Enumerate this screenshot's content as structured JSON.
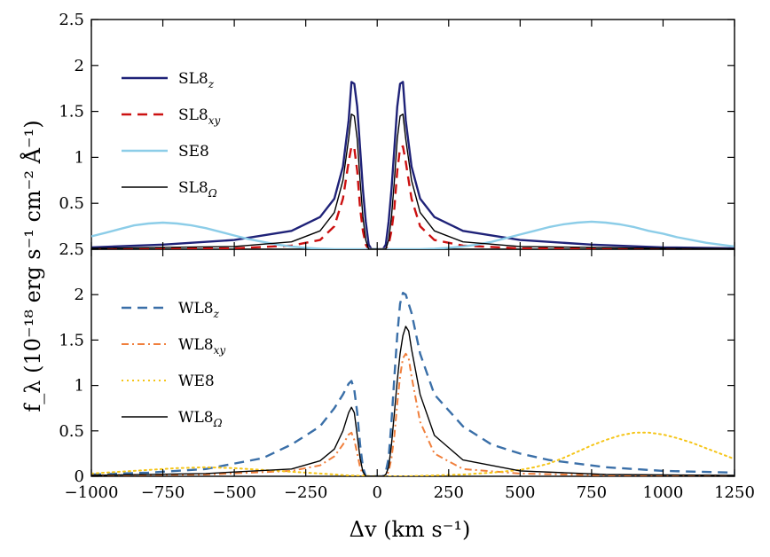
{
  "chart_data": [
    {
      "type": "line",
      "panel": "top",
      "xlim": [
        -1000,
        1250
      ],
      "ylim": [
        0,
        2.5
      ],
      "x_ticks": [
        -1000,
        -750,
        -500,
        -250,
        0,
        250,
        500,
        750,
        1000,
        1250
      ],
      "y_ticks": [
        0.5,
        1,
        1.5,
        2,
        2.5
      ],
      "y_tick_labels": [
        "0.5",
        "1",
        "1.5",
        "2",
        "2.5"
      ],
      "series": [
        {
          "name": "SL8",
          "subscript": "z",
          "color": "#1f2278",
          "style": "solid",
          "x": [
            -1000,
            -750,
            -500,
            -300,
            -200,
            -150,
            -120,
            -100,
            -90,
            -80,
            -70,
            -60,
            -50,
            -40,
            -30,
            -20,
            -10,
            0,
            10,
            20,
            30,
            40,
            50,
            60,
            70,
            80,
            90,
            100,
            120,
            150,
            200,
            300,
            500,
            750,
            1000,
            1250
          ],
          "y": [
            0.02,
            0.05,
            0.1,
            0.2,
            0.35,
            0.55,
            0.9,
            1.4,
            1.82,
            1.8,
            1.55,
            1.1,
            0.65,
            0.3,
            0.05,
            0,
            0,
            0,
            0,
            0,
            0.05,
            0.3,
            0.65,
            1.1,
            1.55,
            1.8,
            1.82,
            1.4,
            0.9,
            0.55,
            0.35,
            0.2,
            0.1,
            0.05,
            0.02,
            0.01
          ]
        },
        {
          "name": "SL8",
          "subscript": "xy",
          "color": "#cc1111",
          "style": "dashed",
          "x": [
            -1000,
            -500,
            -300,
            -200,
            -150,
            -120,
            -100,
            -90,
            -80,
            -70,
            -60,
            -50,
            -40,
            -30,
            -20,
            0,
            20,
            30,
            40,
            50,
            60,
            70,
            80,
            90,
            100,
            120,
            150,
            200,
            300,
            500,
            1000,
            1250
          ],
          "y": [
            0,
            0.01,
            0.04,
            0.1,
            0.25,
            0.55,
            0.95,
            1.12,
            1.1,
            0.85,
            0.45,
            0.2,
            0.05,
            0,
            0,
            0,
            0,
            0,
            0.05,
            0.2,
            0.45,
            0.85,
            1.1,
            1.12,
            0.95,
            0.55,
            0.25,
            0.1,
            0.04,
            0.01,
            0,
            0
          ]
        },
        {
          "name": "SE8",
          "subscript": "",
          "color": "#8ccde8",
          "style": "solid",
          "x": [
            -1000,
            -950,
            -900,
            -850,
            -800,
            -750,
            -700,
            -650,
            -600,
            -550,
            -500,
            -450,
            -400,
            -350,
            -300,
            -250,
            -200,
            -150,
            -100,
            -50,
            0,
            50,
            100,
            150,
            200,
            250,
            300,
            350,
            400,
            450,
            500,
            550,
            600,
            650,
            700,
            750,
            800,
            850,
            900,
            950,
            1000,
            1050,
            1100,
            1150,
            1200,
            1250
          ],
          "y": [
            0.14,
            0.18,
            0.22,
            0.26,
            0.28,
            0.29,
            0.28,
            0.26,
            0.23,
            0.19,
            0.15,
            0.11,
            0.08,
            0.05,
            0.03,
            0.015,
            0.005,
            0,
            0,
            0,
            0,
            0,
            0,
            0,
            0.005,
            0.015,
            0.03,
            0.05,
            0.08,
            0.12,
            0.16,
            0.2,
            0.24,
            0.27,
            0.29,
            0.3,
            0.29,
            0.27,
            0.24,
            0.2,
            0.17,
            0.13,
            0.1,
            0.07,
            0.05,
            0.03
          ]
        },
        {
          "name": "SL8",
          "subscript": "Ω",
          "color": "#000000",
          "style": "solid-thin",
          "x": [
            -1000,
            -500,
            -300,
            -200,
            -150,
            -120,
            -100,
            -90,
            -80,
            -70,
            -60,
            -50,
            -40,
            -30,
            -20,
            0,
            20,
            30,
            40,
            50,
            60,
            70,
            80,
            90,
            100,
            120,
            150,
            200,
            300,
            500,
            1000,
            1250
          ],
          "y": [
            0.01,
            0.03,
            0.08,
            0.2,
            0.4,
            0.75,
            1.2,
            1.47,
            1.45,
            1.2,
            0.75,
            0.35,
            0.1,
            0,
            0,
            0,
            0,
            0,
            0.1,
            0.35,
            0.75,
            1.2,
            1.45,
            1.47,
            1.2,
            0.75,
            0.4,
            0.2,
            0.08,
            0.03,
            0.01,
            0.005
          ]
        }
      ]
    },
    {
      "type": "line",
      "panel": "bottom",
      "xlim": [
        -1000,
        1250
      ],
      "ylim": [
        0,
        2.5
      ],
      "x_ticks": [
        -1000,
        -750,
        -500,
        -250,
        0,
        250,
        500,
        750,
        1000,
        1250
      ],
      "x_tick_labels": [
        "−1000",
        "−750",
        "−500",
        "−250",
        "0",
        "250",
        "500",
        "750",
        "1000",
        "1250"
      ],
      "y_ticks": [
        0,
        0.5,
        1,
        1.5,
        2,
        2.5
      ],
      "y_tick_labels": [
        "0",
        "0.5",
        "1",
        "1.5",
        "2",
        "2.5"
      ],
      "xlabel": "Δv  (km s⁻¹)",
      "ylabel": "f_λ  (10⁻¹⁸ erg s⁻¹ cm⁻² Å⁻¹)",
      "series": [
        {
          "name": "WL8",
          "subscript": "z",
          "color": "#3a6fa8",
          "style": "dashed",
          "x": [
            -1000,
            -800,
            -600,
            -400,
            -300,
            -200,
            -150,
            -120,
            -100,
            -90,
            -80,
            -70,
            -60,
            -50,
            -40,
            -20,
            0,
            20,
            30,
            40,
            50,
            60,
            70,
            80,
            90,
            100,
            120,
            150,
            200,
            300,
            400,
            500,
            600,
            800,
            1000,
            1250
          ],
          "y": [
            0.02,
            0.04,
            0.08,
            0.2,
            0.35,
            0.55,
            0.75,
            0.9,
            1.02,
            1.05,
            0.95,
            0.7,
            0.35,
            0.1,
            0,
            0,
            0,
            0,
            0.05,
            0.2,
            0.6,
            1.1,
            1.55,
            1.9,
            2.02,
            2.0,
            1.8,
            1.35,
            0.9,
            0.55,
            0.35,
            0.25,
            0.18,
            0.1,
            0.06,
            0.04
          ]
        },
        {
          "name": "WL8",
          "subscript": "xy",
          "color": "#f07f3c",
          "style": "dashdot",
          "x": [
            -1000,
            -600,
            -300,
            -200,
            -150,
            -120,
            -100,
            -90,
            -80,
            -70,
            -60,
            -50,
            -40,
            -20,
            0,
            30,
            40,
            50,
            60,
            70,
            80,
            90,
            100,
            110,
            120,
            150,
            200,
            300,
            500,
            800,
            1250
          ],
          "y": [
            0.01,
            0.02,
            0.06,
            0.12,
            0.22,
            0.35,
            0.46,
            0.48,
            0.4,
            0.25,
            0.1,
            0.02,
            0,
            0,
            0,
            0,
            0.05,
            0.2,
            0.45,
            0.8,
            1.1,
            1.3,
            1.35,
            1.3,
            1.1,
            0.6,
            0.25,
            0.08,
            0.03,
            0.01,
            0.005
          ]
        },
        {
          "name": "WE8",
          "subscript": "",
          "color": "#f5c518",
          "style": "dotted",
          "x": [
            -1000,
            -900,
            -800,
            -700,
            -600,
            -500,
            -400,
            -300,
            -200,
            -100,
            0,
            100,
            200,
            300,
            400,
            500,
            550,
            600,
            650,
            700,
            750,
            800,
            850,
            900,
            950,
            1000,
            1050,
            1100,
            1150,
            1200,
            1250
          ],
          "y": [
            0.03,
            0.05,
            0.07,
            0.09,
            0.1,
            0.09,
            0.07,
            0.05,
            0.03,
            0.01,
            0,
            0,
            0.01,
            0.02,
            0.04,
            0.07,
            0.1,
            0.14,
            0.2,
            0.27,
            0.34,
            0.4,
            0.45,
            0.48,
            0.48,
            0.46,
            0.42,
            0.37,
            0.31,
            0.25,
            0.19
          ]
        },
        {
          "name": "WL8",
          "subscript": "Ω",
          "color": "#000000",
          "style": "solid-thin",
          "x": [
            -1000,
            -600,
            -300,
            -200,
            -150,
            -120,
            -100,
            -90,
            -80,
            -70,
            -60,
            -50,
            -40,
            -20,
            0,
            20,
            30,
            40,
            50,
            60,
            70,
            80,
            90,
            100,
            110,
            120,
            150,
            200,
            300,
            500,
            800,
            1250
          ],
          "y": [
            0.01,
            0.03,
            0.08,
            0.17,
            0.3,
            0.5,
            0.7,
            0.76,
            0.7,
            0.45,
            0.2,
            0.05,
            0,
            0,
            0,
            0,
            0.02,
            0.1,
            0.35,
            0.7,
            1.05,
            1.35,
            1.55,
            1.65,
            1.6,
            1.4,
            0.9,
            0.45,
            0.18,
            0.06,
            0.02,
            0.01
          ]
        }
      ]
    }
  ]
}
